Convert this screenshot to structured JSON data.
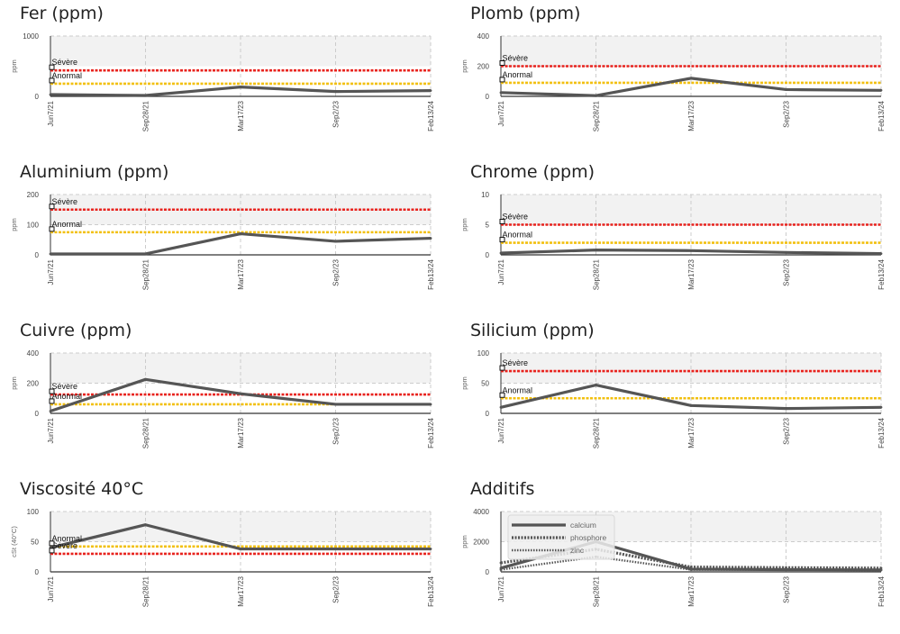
{
  "colors": {
    "severe": "#e8231e",
    "anormal": "#f2c010",
    "series": "#555555",
    "band": "#f2f2f2",
    "grid": "#cccccc"
  },
  "x_labels": [
    "Jun7/21",
    "Sep28/21",
    "Mar17/23",
    "Sep2/23",
    "Feb13/24"
  ],
  "limit_labels": {
    "severe": "Sévère",
    "anormal": "Anormal"
  },
  "chart_data": [
    {
      "type": "line",
      "title": "Fer (ppm)",
      "ylabel": "ppm",
      "ylim": [
        0,
        1000
      ],
      "yticks": [
        0,
        1000
      ],
      "severe": 430,
      "anormal": 210,
      "series": [
        {
          "values": [
            30,
            15,
            155,
            80,
            95
          ]
        }
      ]
    },
    {
      "type": "line",
      "title": "Plomb (ppm)",
      "ylabel": "ppm",
      "ylim": [
        0,
        400
      ],
      "yticks": [
        0,
        200,
        400
      ],
      "severe": 200,
      "anormal": 90,
      "series": [
        {
          "values": [
            25,
            5,
            120,
            45,
            40
          ]
        }
      ]
    },
    {
      "type": "line",
      "title": "Aluminium (ppm)",
      "ylabel": "ppm",
      "ylim": [
        0,
        200
      ],
      "yticks": [
        0,
        100,
        200
      ],
      "severe": 150,
      "anormal": 75,
      "series": [
        {
          "values": [
            3,
            3,
            70,
            45,
            55
          ]
        }
      ]
    },
    {
      "type": "line",
      "title": "Chrome (ppm)",
      "ylabel": "ppm",
      "ylim": [
        0,
        10
      ],
      "yticks": [
        0,
        5,
        10
      ],
      "severe": 5,
      "anormal": 2,
      "series": [
        {
          "values": [
            0.3,
            0.8,
            0.7,
            0.4,
            0.2
          ]
        }
      ]
    },
    {
      "type": "line",
      "title": "Cuivre (ppm)",
      "ylabel": "ppm",
      "ylim": [
        0,
        400
      ],
      "yticks": [
        0,
        200,
        400
      ],
      "severe": 125,
      "anormal": 60,
      "series": [
        {
          "values": [
            15,
            225,
            130,
            60,
            60
          ]
        }
      ]
    },
    {
      "type": "line",
      "title": "Silicium (ppm)",
      "ylabel": "ppm",
      "ylim": [
        0,
        100
      ],
      "yticks": [
        0,
        50,
        100
      ],
      "severe": 70,
      "anormal": 25,
      "series": [
        {
          "values": [
            10,
            47,
            13,
            8,
            10
          ]
        }
      ]
    },
    {
      "type": "line",
      "title": "Viscosité 40°C",
      "ylabel": "cSt (40°C)",
      "ylim": [
        0,
        100
      ],
      "yticks": [
        0,
        50,
        100
      ],
      "severe": 30,
      "anormal": 42,
      "series": [
        {
          "values": [
            40,
            78,
            38,
            38,
            38
          ]
        }
      ]
    },
    {
      "type": "line",
      "title": "Additifs",
      "ylabel": "ppm",
      "ylim": [
        0,
        4000
      ],
      "yticks": [
        0,
        2000,
        4000
      ],
      "legend": "top-left",
      "series": [
        {
          "name": "calcium",
          "values": [
            250,
            2000,
            180,
            150,
            130
          ]
        },
        {
          "name": "phosphore",
          "values": [
            600,
            1500,
            320,
            280,
            250
          ]
        },
        {
          "name": "zinc",
          "values": [
            150,
            1000,
            150,
            140,
            120
          ]
        }
      ]
    }
  ]
}
